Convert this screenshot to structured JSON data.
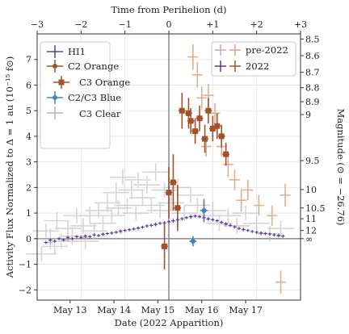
{
  "chart_data": {
    "type": "scatter",
    "xlabel": "Date (2022 Apparition)",
    "xlabel_top": "Time from Perihelion (d)",
    "ylabel": "Activity Flux Normalized to Δ = 1 au (10⁻¹⁵ f⊙)",
    "ylabel_right": "Magnitude (⊙ = −26.76)",
    "xlim": [
      -3,
      3
    ],
    "ylim": [
      -2.4,
      8.0
    ],
    "x_ticks_bottom": [
      {
        "label": "May 13",
        "value": -2.25
      },
      {
        "label": "May 14",
        "value": -1.25
      },
      {
        "label": "May 15",
        "value": -0.25
      },
      {
        "label": "May 16",
        "value": 0.75
      },
      {
        "label": "May 17",
        "value": 1.75
      }
    ],
    "x_ticks_top": [
      {
        "label": "−3",
        "value": -3
      },
      {
        "label": "−2",
        "value": -2
      },
      {
        "label": "−1",
        "value": -1
      },
      {
        "label": "0",
        "value": 0
      },
      {
        "label": "+1",
        "value": 1
      },
      {
        "label": "+2",
        "value": 2
      },
      {
        "label": "+3",
        "value": 3
      }
    ],
    "y_ticks": [
      {
        "label": "−2",
        "value": -2
      },
      {
        "label": "−1",
        "value": -1
      },
      {
        "label": "0",
        "value": 0
      },
      {
        "label": "1",
        "value": 1
      },
      {
        "label": "2",
        "value": 2
      },
      {
        "label": "3",
        "value": 3
      },
      {
        "label": "4",
        "value": 4
      },
      {
        "label": "5",
        "value": 5
      },
      {
        "label": "6",
        "value": 6
      },
      {
        "label": "7",
        "value": 7
      }
    ],
    "mag_ticks": [
      {
        "label": "8.5",
        "value": 7.8
      },
      {
        "label": "8.6",
        "value": 7.15
      },
      {
        "label": "8.7",
        "value": 6.5
      },
      {
        "label": "8.8",
        "value": 5.9
      },
      {
        "label": "8.9",
        "value": 5.35
      },
      {
        "label": "9",
        "value": 4.85
      },
      {
        "label": "9.5",
        "value": 3.05
      },
      {
        "label": "10",
        "value": 1.92
      },
      {
        "label": "10.5",
        "value": 1.2
      },
      {
        "label": "11",
        "value": 0.78
      },
      {
        "label": "12",
        "value": 0.32
      },
      {
        "label": "∞",
        "value": 0.0
      }
    ],
    "perihelion_x": 0,
    "legend_main": [
      "HI1",
      "C2 Orange",
      "C3 Orange",
      "C2/C3 Blue",
      "C3 Clear"
    ],
    "legend_epoch": [
      "pre-2022",
      "2022"
    ],
    "colors": {
      "hi1": "#5e3c99",
      "orange": "#a0522d",
      "orange_light": "#d9a27e",
      "hi1_light": "#b8a8d4",
      "blue": "#4682b4",
      "clear": "#b4b4b4",
      "zero_line": "#555555",
      "perihelion_line": "#888888",
      "grid": "#e3e3e3"
    },
    "series": [
      {
        "key": "clear",
        "points": [
          [
            -2.9,
            -0.6,
            0.35,
            0.3
          ],
          [
            -2.8,
            0.3,
            0.3,
            0.3
          ],
          [
            -2.7,
            0.0,
            0.35,
            0.4
          ],
          [
            -2.55,
            0.7,
            0.3,
            0.35
          ],
          [
            -2.45,
            -0.1,
            0.3,
            0.3
          ],
          [
            -2.3,
            0.4,
            0.3,
            0.3
          ],
          [
            -2.2,
            0.1,
            0.3,
            0.35
          ],
          [
            -2.1,
            0.9,
            0.3,
            0.3
          ],
          [
            -1.95,
            0.5,
            0.3,
            0.3
          ],
          [
            -1.8,
            0.9,
            0.3,
            0.35
          ],
          [
            -1.7,
            0.3,
            0.3,
            0.3
          ],
          [
            -1.6,
            1.1,
            0.3,
            0.3
          ],
          [
            -1.5,
            0.6,
            0.3,
            0.3
          ],
          [
            -1.4,
            1.4,
            0.3,
            0.35
          ],
          [
            -1.3,
            0.9,
            0.3,
            0.3
          ],
          [
            -1.2,
            1.8,
            0.3,
            0.4
          ],
          [
            -1.15,
            1.2,
            0.3,
            0.3
          ],
          [
            -1.05,
            2.4,
            0.3,
            0.3
          ],
          [
            -0.95,
            1.3,
            0.3,
            0.3
          ],
          [
            -0.85,
            1.9,
            0.3,
            0.35
          ],
          [
            -0.75,
            1.0,
            0.3,
            0.3
          ],
          [
            -0.7,
            2.3,
            0.3,
            0.3
          ],
          [
            -0.6,
            1.6,
            0.3,
            0.3
          ],
          [
            -0.5,
            2.1,
            0.3,
            0.35
          ],
          [
            -0.4,
            1.3,
            0.3,
            0.3
          ],
          [
            -0.3,
            2.6,
            0.3,
            0.35
          ],
          [
            -0.2,
            1.1,
            0.3,
            0.3
          ],
          [
            -0.1,
            1.9,
            0.3,
            0.3
          ],
          [
            0.05,
            1.4,
            0.3,
            0.3
          ],
          [
            0.2,
            2.0,
            0.3,
            0.35
          ],
          [
            0.35,
            1.0,
            0.3,
            0.3
          ],
          [
            0.5,
            1.7,
            0.3,
            0.3
          ],
          [
            0.65,
            1.3,
            0.3,
            0.3
          ],
          [
            0.8,
            0.9,
            0.3,
            0.3
          ],
          [
            1.0,
            1.1,
            0.3,
            0.35
          ],
          [
            1.15,
            0.6,
            0.3,
            0.3
          ],
          [
            1.35,
            0.9,
            0.3,
            0.3
          ],
          [
            1.55,
            0.5,
            0.3,
            0.3
          ],
          [
            1.75,
            1.0,
            0.3,
            0.3
          ],
          [
            2.0,
            0.6,
            0.3,
            0.3
          ],
          [
            2.3,
            0.2,
            0.3,
            0.3
          ],
          [
            2.55,
            0.4,
            0.3,
            0.3
          ],
          [
            -2.6,
            -0.3,
            0.3,
            0.3
          ],
          [
            -1.9,
            -0.1,
            0.3,
            0.3
          ]
        ]
      },
      {
        "key": "orange_light",
        "points": [
          [
            0.55,
            7.1,
            0.12,
            0.5
          ],
          [
            0.65,
            6.4,
            0.12,
            0.5
          ],
          [
            0.75,
            5.5,
            0.12,
            0.45
          ],
          [
            0.9,
            5.6,
            0.12,
            0.45
          ],
          [
            1.05,
            4.9,
            0.12,
            0.4
          ],
          [
            1.2,
            3.6,
            0.12,
            0.4
          ],
          [
            0.85,
            3.6,
            0.12,
            0.4
          ],
          [
            1.35,
            2.9,
            0.12,
            0.5
          ],
          [
            1.5,
            2.3,
            0.12,
            0.4
          ],
          [
            1.65,
            1.5,
            0.12,
            0.45
          ],
          [
            1.8,
            1.9,
            0.12,
            0.4
          ],
          [
            2.05,
            1.3,
            0.12,
            0.4
          ],
          [
            2.35,
            0.9,
            0.12,
            0.4
          ],
          [
            2.65,
            1.7,
            0.12,
            0.45
          ],
          [
            2.55,
            -1.7,
            0.12,
            0.45
          ]
        ]
      },
      {
        "key": "orange",
        "points": [
          [
            -0.1,
            -0.3,
            0.08,
            0.9
          ],
          [
            0.0,
            1.8,
            0.08,
            1.0
          ],
          [
            0.1,
            2.2,
            0.08,
            1.1
          ],
          [
            0.2,
            1.2,
            0.08,
            0.9
          ],
          [
            0.3,
            5.0,
            0.08,
            0.7
          ],
          [
            0.45,
            4.9,
            0.08,
            0.6
          ],
          [
            0.5,
            4.6,
            0.08,
            0.5
          ],
          [
            0.6,
            4.2,
            0.08,
            0.5
          ],
          [
            0.7,
            4.7,
            0.08,
            0.5
          ],
          [
            0.82,
            3.9,
            0.08,
            0.55
          ],
          [
            0.9,
            5.0,
            0.08,
            0.5
          ],
          [
            1.0,
            4.3,
            0.08,
            0.5
          ],
          [
            1.1,
            4.4,
            0.08,
            0.5
          ],
          [
            1.2,
            4.0,
            0.08,
            0.45
          ],
          [
            1.3,
            3.3,
            0.08,
            0.45
          ]
        ]
      },
      {
        "key": "blue",
        "points": [
          [
            0.55,
            -0.1,
            0.08,
            0.2
          ],
          [
            0.8,
            1.1,
            0.08,
            0.45
          ]
        ]
      },
      {
        "key": "hi1_light",
        "points": [
          [
            -2.7,
            -0.15,
            0.05,
            0.08
          ],
          [
            -2.3,
            -0.05,
            0.05,
            0.08
          ],
          [
            -1.9,
            0.05,
            0.05,
            0.08
          ],
          [
            -1.5,
            0.15,
            0.05,
            0.08
          ],
          [
            -1.1,
            0.25,
            0.05,
            0.08
          ],
          [
            -0.7,
            0.4,
            0.05,
            0.08
          ],
          [
            -0.3,
            0.55,
            0.05,
            0.1
          ],
          [
            0.1,
            0.7,
            0.05,
            0.1
          ],
          [
            0.5,
            0.85,
            0.05,
            0.1
          ],
          [
            0.9,
            0.75,
            0.05,
            0.1
          ],
          [
            1.3,
            0.55,
            0.05,
            0.1
          ],
          [
            1.7,
            0.35,
            0.05,
            0.08
          ],
          [
            2.1,
            0.2,
            0.05,
            0.08
          ],
          [
            2.5,
            0.1,
            0.05,
            0.08
          ]
        ]
      },
      {
        "key": "hi1",
        "points": [
          [
            -2.8,
            -0.15,
            0.04,
            0.06
          ],
          [
            -2.7,
            -0.05,
            0.04,
            0.06
          ],
          [
            -2.6,
            -0.1,
            0.04,
            0.06
          ],
          [
            -2.5,
            0.0,
            0.04,
            0.06
          ],
          [
            -2.4,
            -0.05,
            0.04,
            0.06
          ],
          [
            -2.3,
            0.05,
            0.04,
            0.06
          ],
          [
            -2.2,
            0.0,
            0.04,
            0.06
          ],
          [
            -2.1,
            0.08,
            0.04,
            0.06
          ],
          [
            -2.0,
            0.05,
            0.04,
            0.06
          ],
          [
            -1.9,
            0.1,
            0.04,
            0.06
          ],
          [
            -1.8,
            0.08,
            0.04,
            0.06
          ],
          [
            -1.7,
            0.15,
            0.04,
            0.06
          ],
          [
            -1.6,
            0.12,
            0.04,
            0.06
          ],
          [
            -1.5,
            0.18,
            0.04,
            0.06
          ],
          [
            -1.4,
            0.2,
            0.04,
            0.06
          ],
          [
            -1.3,
            0.22,
            0.04,
            0.06
          ],
          [
            -1.2,
            0.25,
            0.04,
            0.06
          ],
          [
            -1.1,
            0.3,
            0.04,
            0.06
          ],
          [
            -1.0,
            0.32,
            0.04,
            0.06
          ],
          [
            -0.9,
            0.35,
            0.04,
            0.06
          ],
          [
            -0.8,
            0.38,
            0.04,
            0.06
          ],
          [
            -0.7,
            0.42,
            0.04,
            0.06
          ],
          [
            -0.6,
            0.45,
            0.04,
            0.06
          ],
          [
            -0.5,
            0.5,
            0.04,
            0.06
          ],
          [
            -0.4,
            0.52,
            0.04,
            0.06
          ],
          [
            -0.3,
            0.56,
            0.04,
            0.06
          ],
          [
            -0.2,
            0.6,
            0.04,
            0.06
          ],
          [
            -0.1,
            0.62,
            0.04,
            0.06
          ],
          [
            0.0,
            0.66,
            0.04,
            0.06
          ],
          [
            0.1,
            0.7,
            0.04,
            0.06
          ],
          [
            0.2,
            0.74,
            0.04,
            0.06
          ],
          [
            0.3,
            0.78,
            0.04,
            0.06
          ],
          [
            0.4,
            0.82,
            0.04,
            0.06
          ],
          [
            0.5,
            0.86,
            0.04,
            0.06
          ],
          [
            0.6,
            0.88,
            0.04,
            0.06
          ],
          [
            0.7,
            0.86,
            0.04,
            0.06
          ],
          [
            0.8,
            0.82,
            0.04,
            0.06
          ],
          [
            0.9,
            0.78,
            0.04,
            0.06
          ],
          [
            1.0,
            0.74,
            0.04,
            0.06
          ],
          [
            1.1,
            0.7,
            0.04,
            0.06
          ],
          [
            1.2,
            0.64,
            0.04,
            0.06
          ],
          [
            1.3,
            0.58,
            0.04,
            0.06
          ],
          [
            1.4,
            0.52,
            0.04,
            0.06
          ],
          [
            1.5,
            0.46,
            0.04,
            0.06
          ],
          [
            1.6,
            0.4,
            0.04,
            0.06
          ],
          [
            1.7,
            0.36,
            0.04,
            0.06
          ],
          [
            1.8,
            0.32,
            0.04,
            0.06
          ],
          [
            1.9,
            0.28,
            0.04,
            0.06
          ],
          [
            2.0,
            0.25,
            0.04,
            0.06
          ],
          [
            2.1,
            0.22,
            0.04,
            0.06
          ],
          [
            2.2,
            0.2,
            0.04,
            0.06
          ],
          [
            2.3,
            0.18,
            0.04,
            0.06
          ],
          [
            2.4,
            0.15,
            0.04,
            0.06
          ],
          [
            2.5,
            0.13,
            0.04,
            0.06
          ],
          [
            2.6,
            0.1,
            0.04,
            0.06
          ]
        ]
      }
    ]
  }
}
